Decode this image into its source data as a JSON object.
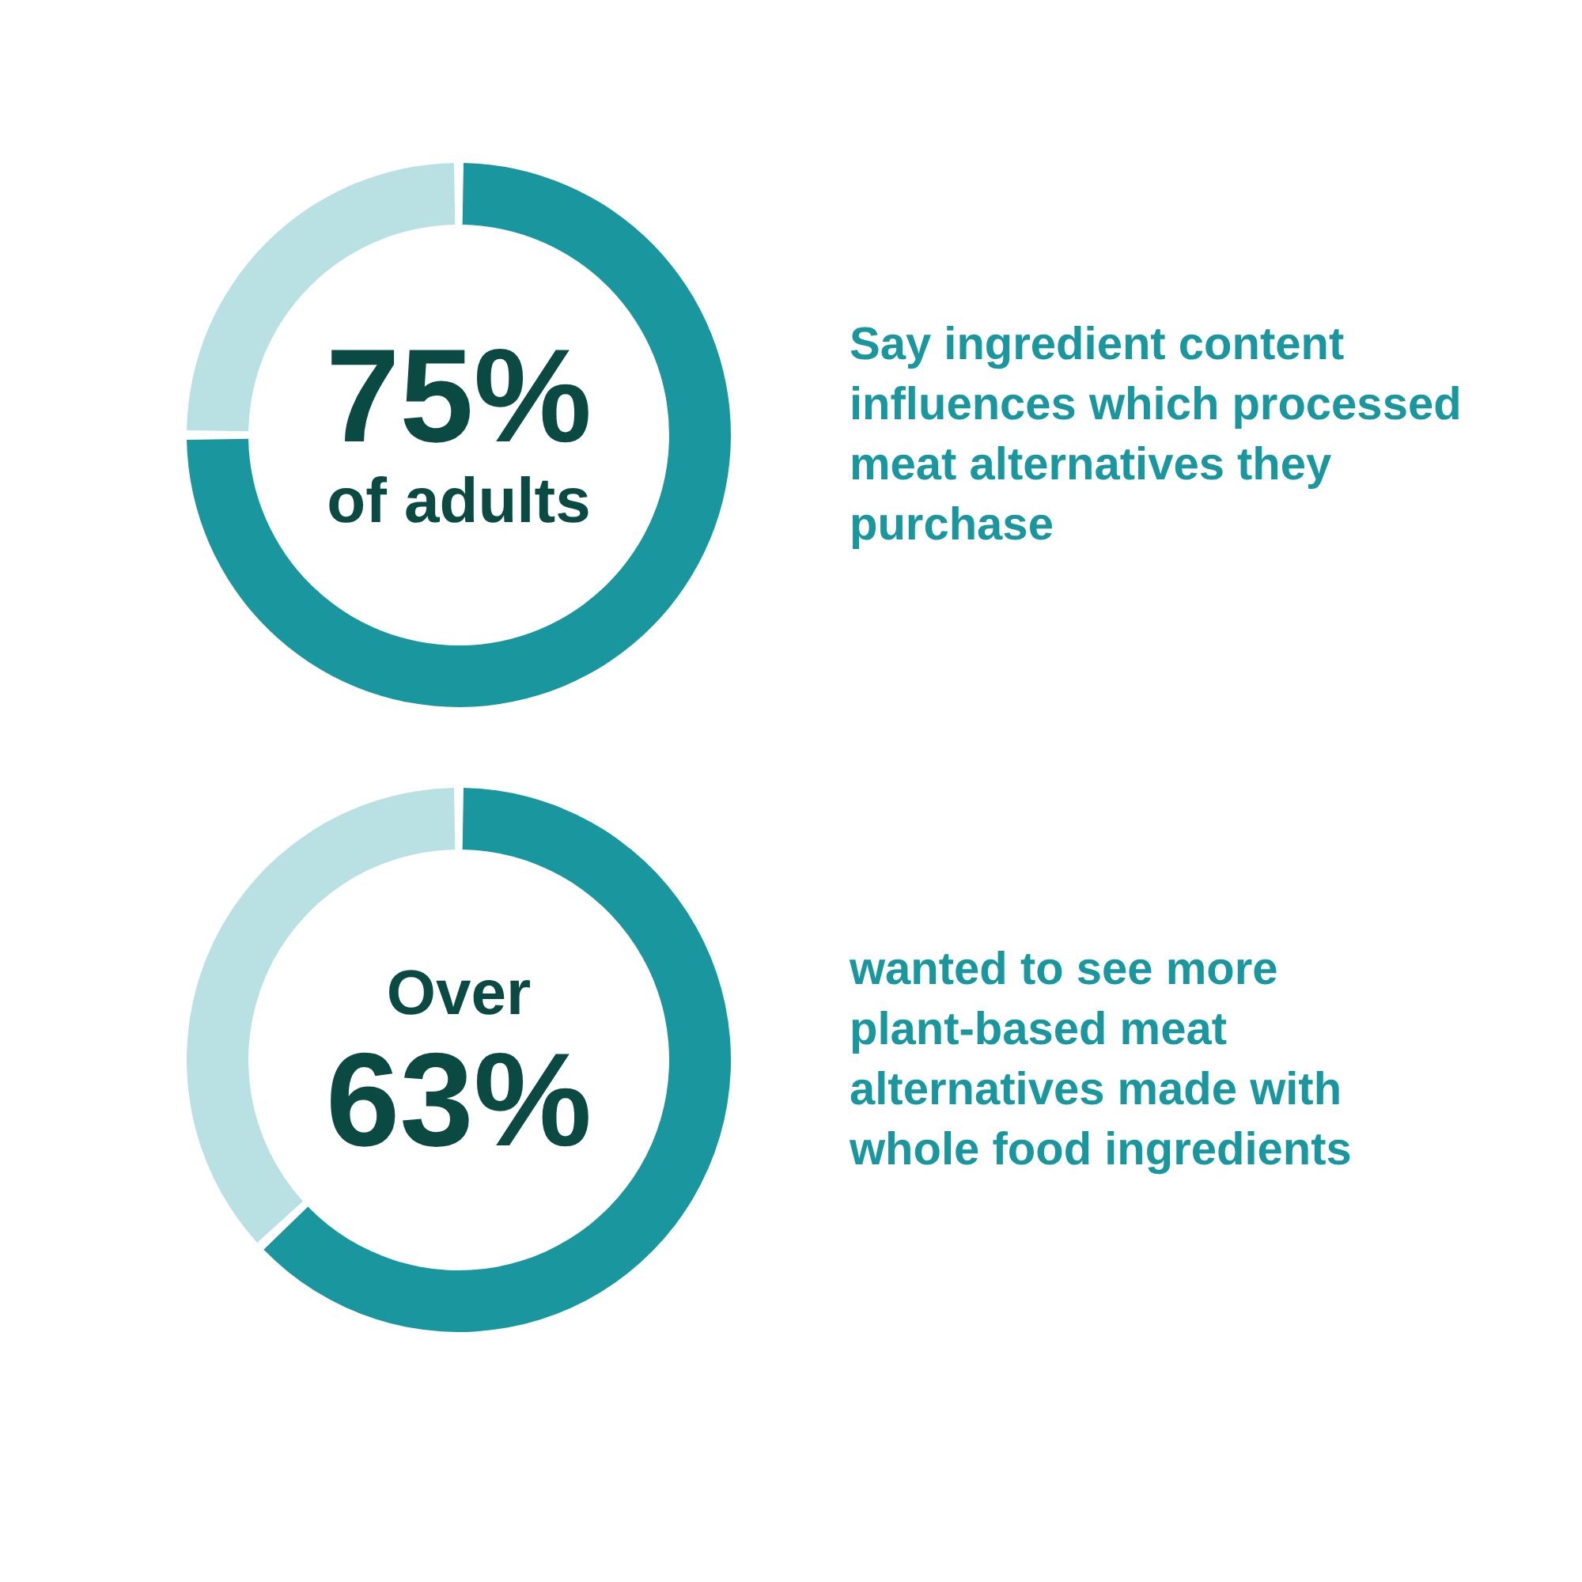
{
  "chart_data": [
    {
      "type": "donut",
      "categories": [
        null,
        null
      ],
      "values": [
        75,
        25
      ],
      "colors": [
        "#1a979e",
        "#b9e0e3"
      ],
      "value_labels": [
        "75%\nof adults",
        null
      ],
      "annotations": [
        "Say ingredient content influences which processed meat alternatives they purchase"
      ]
    },
    {
      "type": "donut",
      "categories": [
        null,
        null
      ],
      "values": [
        63,
        37
      ],
      "colors": [
        "#1a979e",
        "#b9e0e3"
      ],
      "value_labels": [
        "Over\n63%",
        null
      ],
      "annotations": [
        "wanted to see more plant-based meat alternatives made with whole food ingredients"
      ]
    }
  ]
}
